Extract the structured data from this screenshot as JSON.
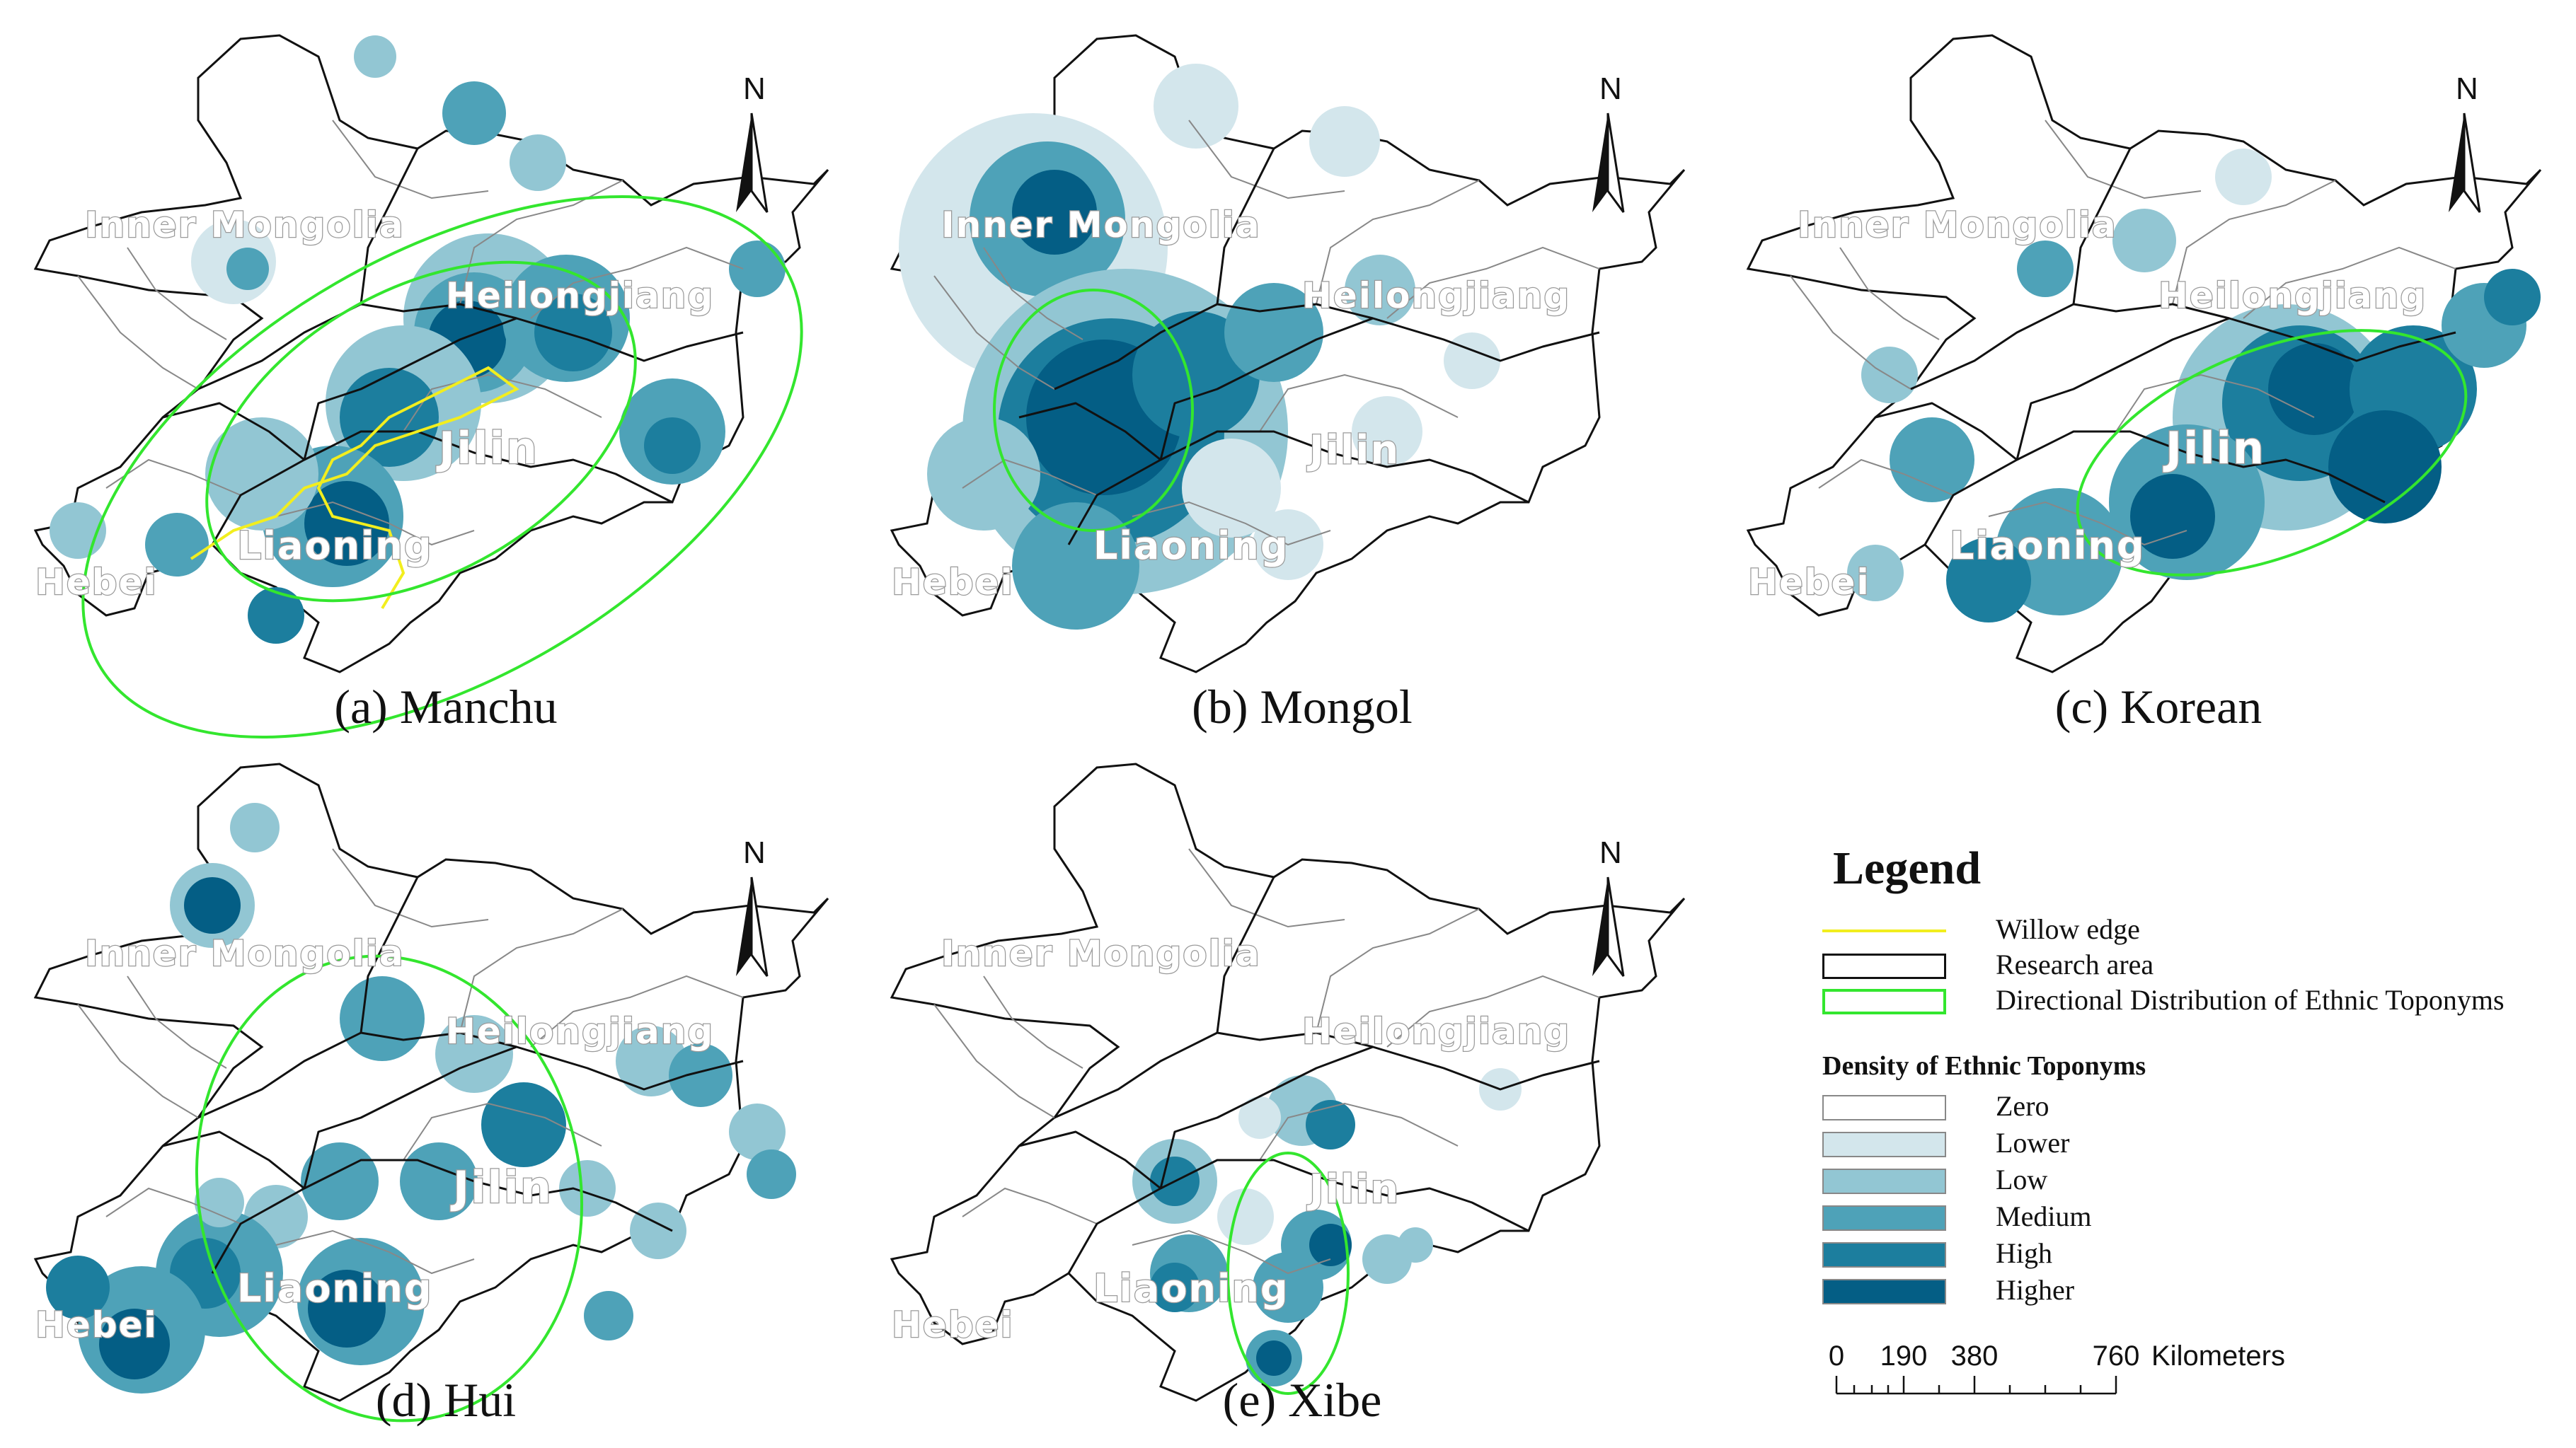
{
  "north_label": "N",
  "region_labels": {
    "inner_mongolia": "Inner Mongolia",
    "heilongjiang": "Heilongjiang",
    "jilin": "Jilin",
    "liaoning": "Liaoning",
    "hebei": "Hebei"
  },
  "panels": [
    {
      "id": "a",
      "caption": "(a) Manchu"
    },
    {
      "id": "b",
      "caption": "(b) Mongol"
    },
    {
      "id": "c",
      "caption": "(c) Korean"
    },
    {
      "id": "d",
      "caption": "(d) Hui"
    },
    {
      "id": "e",
      "caption": "(e) Xibe"
    }
  ],
  "legend": {
    "title": "Legend",
    "willow_edge": "Willow edge",
    "research_area": "Research area",
    "directional": "Directional Distribution of Ethnic Toponyms",
    "density_title": "Density of Ethnic Toponyms",
    "classes": [
      {
        "label": "Zero",
        "color": "#ffffff"
      },
      {
        "label": "Lower",
        "color": "#d3e6ec"
      },
      {
        "label": "Low",
        "color": "#92c6d3"
      },
      {
        "label": "Medium",
        "color": "#4ea2b8"
      },
      {
        "label": "High",
        "color": "#1c7e9e"
      },
      {
        "label": "Higher",
        "color": "#045e85"
      }
    ],
    "line_colors": {
      "willow": "#f2ee1e",
      "research": "#111111",
      "directional": "#33e62e"
    }
  },
  "scale_bar": {
    "ticks": [
      "0",
      "190",
      "380",
      "760"
    ],
    "unit": "Kilometers"
  }
}
